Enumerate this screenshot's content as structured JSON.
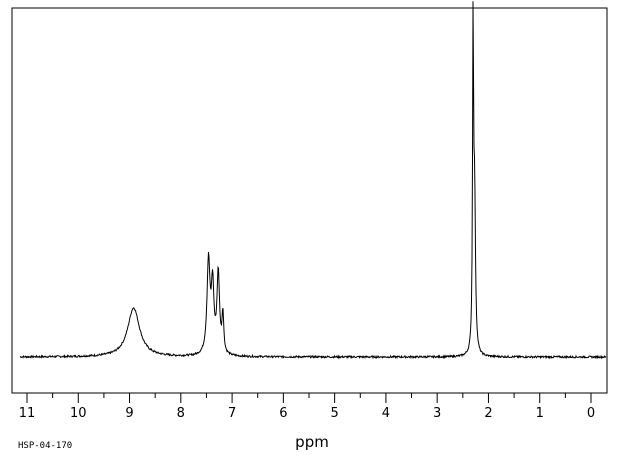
{
  "chart_data": {
    "type": "line",
    "title": "",
    "xlabel": "ppm",
    "ylabel": "",
    "spectrum_code": "HSP-04-170",
    "xlim": [
      11.1,
      -0.2
    ],
    "x_reversed": true,
    "ylim": [
      0,
      1
    ],
    "ticks": [
      "11",
      "10",
      "9",
      "8",
      "7",
      "6",
      "5",
      "4",
      "3",
      "2",
      "1",
      "0"
    ],
    "minor_tick_step": 0.5,
    "grid": false,
    "baseline": 0.0,
    "peaks": [
      {
        "ppm": 8.92,
        "height": 0.155,
        "width": 0.14,
        "shape": "broad"
      },
      {
        "ppm": 7.46,
        "height": 0.295,
        "width": 0.035,
        "shape": "sharp"
      },
      {
        "ppm": 7.38,
        "height": 0.21,
        "width": 0.03,
        "shape": "sharp"
      },
      {
        "ppm": 7.27,
        "height": 0.255,
        "width": 0.03,
        "shape": "sharp"
      },
      {
        "ppm": 7.18,
        "height": 0.125,
        "width": 0.02,
        "shape": "sharp"
      },
      {
        "ppm": 2.3,
        "height": 1.0,
        "width": 0.012,
        "shape": "sharp"
      },
      {
        "ppm": 2.27,
        "height": 0.48,
        "width": 0.02,
        "shape": "sharp"
      }
    ],
    "line_color": "#000000"
  }
}
